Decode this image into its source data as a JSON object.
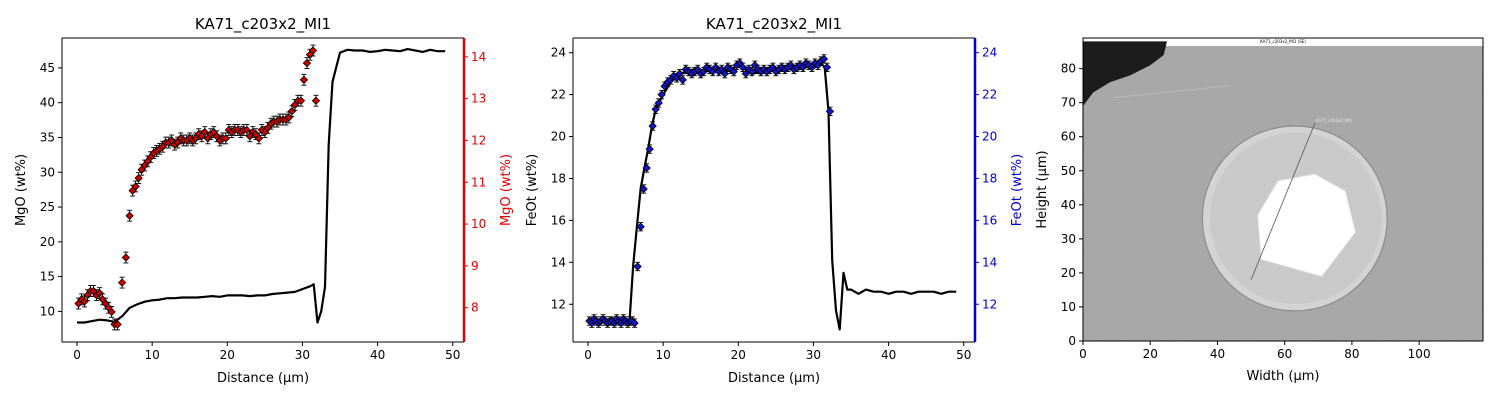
{
  "chart_data": [
    {
      "type": "line",
      "title": "KA71_c203x2_MI1",
      "xlabel": "Distance (µm)",
      "ylabel": "MgO (wt%)",
      "ylabel_right": "MgO (wt%)",
      "xlim": [
        -2,
        51.5
      ],
      "ylim": [
        5.6,
        49.3
      ],
      "ylim_right": [
        7.18,
        14.45
      ],
      "xticks": [
        0,
        10,
        20,
        30,
        40,
        50
      ],
      "yticks": [
        10,
        15,
        20,
        25,
        30,
        35,
        40,
        45
      ],
      "yticks_right": [
        8,
        9,
        10,
        11,
        12,
        13,
        14
      ],
      "grid": false,
      "colors": {
        "line": "#000000",
        "points": "#cc0000",
        "right_axis": "#e00000"
      },
      "series": [
        {
          "axis": "left",
          "style": "line",
          "x": [
            0,
            1,
            2,
            3,
            4,
            5,
            6,
            7,
            8,
            9,
            10,
            11,
            12,
            13,
            14,
            15,
            16,
            17,
            18,
            19,
            20,
            21,
            22,
            23,
            24,
            25,
            26,
            27,
            28,
            29,
            30,
            31,
            31.5,
            32,
            32.5,
            33,
            33.5,
            34,
            35,
            36,
            37,
            38,
            39,
            40,
            41,
            42,
            43,
            44,
            45,
            46,
            47,
            48,
            49
          ],
          "y": [
            8.4,
            8.4,
            8.6,
            8.8,
            8.7,
            8.5,
            9.3,
            10.5,
            11.0,
            11.4,
            11.6,
            11.7,
            11.9,
            11.9,
            12.0,
            12.0,
            12.0,
            12.1,
            12.2,
            12.1,
            12.3,
            12.3,
            12.3,
            12.2,
            12.3,
            12.3,
            12.5,
            12.6,
            12.7,
            12.8,
            13.2,
            13.6,
            13.9,
            8.4,
            10.0,
            13.5,
            34,
            43,
            47.2,
            47.6,
            47.5,
            47.5,
            47.3,
            47.4,
            47.6,
            47.5,
            47.4,
            47.7,
            47.5,
            47.3,
            47.6,
            47.4,
            47.4
          ]
        },
        {
          "axis": "right",
          "style": "errorbar",
          "x": [
            0.2,
            0.6,
            1.0,
            1.4,
            1.8,
            2.2,
            2.6,
            3.0,
            3.4,
            3.8,
            4.2,
            4.6,
            5.0,
            5.4,
            6.0,
            6.5,
            7.0,
            7.4,
            7.8,
            8.2,
            8.6,
            9.0,
            9.4,
            9.8,
            10.2,
            10.6,
            11.0,
            11.4,
            11.8,
            12.2,
            12.6,
            13.0,
            13.4,
            13.8,
            14.2,
            14.6,
            15.0,
            15.4,
            15.8,
            16.2,
            16.6,
            17.0,
            17.4,
            17.8,
            18.2,
            18.6,
            19.0,
            19.4,
            19.8,
            20.2,
            20.6,
            21.0,
            21.4,
            21.8,
            22.2,
            22.6,
            23.0,
            23.4,
            23.8,
            24.2,
            24.6,
            25.0,
            25.4,
            25.8,
            26.2,
            26.6,
            27.0,
            27.4,
            27.8,
            28.2,
            28.6,
            29.0,
            29.4,
            29.8,
            30.2,
            30.6,
            31.0,
            31.4,
            31.8
          ],
          "y": [
            8.1,
            8.2,
            8.15,
            8.3,
            8.4,
            8.4,
            8.3,
            8.35,
            8.2,
            8.1,
            8.0,
            7.9,
            7.6,
            7.6,
            8.6,
            9.2,
            10.2,
            10.8,
            10.9,
            11.1,
            11.3,
            11.4,
            11.5,
            11.6,
            11.7,
            11.75,
            11.8,
            11.85,
            11.95,
            11.95,
            12.0,
            11.9,
            11.95,
            12.05,
            12.0,
            12.0,
            12.05,
            12.0,
            12.05,
            12.15,
            12.1,
            12.2,
            12.05,
            12.15,
            12.2,
            12.1,
            12.0,
            12.05,
            12.05,
            12.25,
            12.2,
            12.25,
            12.25,
            12.2,
            12.25,
            12.25,
            12.1,
            12.2,
            12.15,
            12.05,
            12.25,
            12.2,
            12.3,
            12.4,
            12.45,
            12.45,
            12.5,
            12.5,
            12.5,
            12.55,
            12.7,
            12.85,
            12.95,
            12.95,
            13.45,
            13.85,
            14.05,
            14.15,
            12.95
          ],
          "err": [
            0.13,
            0.13,
            0.13,
            0.13,
            0.13,
            0.13,
            0.13,
            0.13,
            0.13,
            0.13,
            0.13,
            0.13,
            0.13,
            0.13,
            0.13,
            0.13,
            0.13,
            0.13,
            0.13,
            0.13,
            0.13,
            0.13,
            0.13,
            0.13,
            0.13,
            0.13,
            0.13,
            0.13,
            0.13,
            0.13,
            0.13,
            0.13,
            0.13,
            0.13,
            0.13,
            0.13,
            0.13,
            0.13,
            0.13,
            0.13,
            0.13,
            0.13,
            0.13,
            0.13,
            0.13,
            0.13,
            0.13,
            0.13,
            0.13,
            0.13,
            0.13,
            0.13,
            0.13,
            0.13,
            0.13,
            0.13,
            0.13,
            0.13,
            0.13,
            0.13,
            0.13,
            0.13,
            0.13,
            0.13,
            0.13,
            0.13,
            0.13,
            0.13,
            0.13,
            0.13,
            0.13,
            0.13,
            0.13,
            0.13,
            0.13,
            0.13,
            0.13,
            0.13,
            0.13
          ]
        }
      ]
    },
    {
      "type": "line",
      "title": "KA71_c203x2_MI1",
      "xlabel": "Distance (µm)",
      "ylabel": "FeOt (wt%)",
      "ylabel_right": "FeOt (wt%)",
      "xlim": [
        -2,
        51.5
      ],
      "ylim": [
        10.2,
        24.7
      ],
      "ylim_right": [
        10.2,
        24.7
      ],
      "xticks": [
        0,
        10,
        20,
        30,
        40,
        50
      ],
      "yticks": [
        12,
        14,
        16,
        18,
        20,
        22,
        24
      ],
      "yticks_right": [
        12,
        14,
        16,
        18,
        20,
        22,
        24
      ],
      "grid": false,
      "colors": {
        "line": "#000000",
        "points": "#1515c8",
        "right_axis": "#0000cc"
      },
      "series": [
        {
          "axis": "left",
          "style": "line",
          "x": [
            0,
            1,
            2,
            3,
            4,
            5,
            5.5,
            6,
            6.5,
            7,
            7.5,
            8,
            8.5,
            9,
            10,
            11,
            12,
            13,
            14,
            15,
            16,
            17,
            18,
            19,
            20,
            21,
            22,
            23,
            24,
            25,
            26,
            27,
            28,
            29,
            30,
            31,
            31.5,
            32,
            32.5,
            33,
            33.5,
            34,
            34.5,
            35,
            36,
            37,
            38,
            39,
            40,
            41,
            42,
            43,
            44,
            45,
            46,
            47,
            48,
            49
          ],
          "y": [
            11.3,
            11.3,
            11.2,
            11.2,
            11.3,
            11.2,
            11.1,
            13.8,
            15.7,
            17.5,
            18.5,
            19.4,
            20.5,
            21.3,
            22.0,
            22.6,
            22.9,
            23.1,
            23.2,
            23.1,
            23.2,
            23.3,
            23.1,
            23.2,
            23.4,
            23.3,
            23.0,
            23.1,
            23.1,
            23.2,
            23.3,
            23.2,
            23.2,
            23.3,
            23.4,
            23.5,
            23.3,
            21.2,
            14.1,
            11.7,
            10.8,
            13.5,
            12.7,
            12.7,
            12.5,
            12.7,
            12.6,
            12.6,
            12.5,
            12.6,
            12.6,
            12.5,
            12.6,
            12.6,
            12.6,
            12.5,
            12.6,
            12.6
          ]
        },
        {
          "axis": "right",
          "style": "errorbar",
          "x": [
            0.2,
            0.5,
            0.8,
            1.1,
            1.4,
            1.7,
            2.0,
            2.3,
            2.6,
            2.9,
            3.2,
            3.5,
            3.8,
            4.1,
            4.4,
            4.7,
            5.0,
            5.3,
            5.6,
            5.9,
            6.2,
            6.6,
            7.0,
            7.4,
            7.8,
            8.2,
            8.6,
            9.0,
            9.4,
            9.8,
            10.2,
            10.6,
            11.0,
            11.4,
            11.8,
            12.2,
            12.6,
            13.0,
            13.4,
            13.8,
            14.2,
            14.6,
            15.0,
            15.4,
            15.8,
            16.2,
            16.6,
            17.0,
            17.4,
            17.8,
            18.2,
            18.6,
            19.0,
            19.4,
            19.8,
            20.2,
            20.6,
            21.0,
            21.4,
            21.8,
            22.2,
            22.6,
            23.0,
            23.4,
            23.8,
            24.2,
            24.6,
            25.0,
            25.4,
            25.8,
            26.2,
            26.6,
            27.0,
            27.4,
            27.8,
            28.2,
            28.6,
            29.0,
            29.4,
            29.8,
            30.2,
            30.6,
            31.0,
            31.4,
            31.8,
            32.2
          ],
          "y": [
            11.2,
            11.1,
            11.3,
            11.2,
            11.1,
            11.2,
            11.3,
            11.2,
            11.1,
            11.2,
            11.2,
            11.1,
            11.3,
            11.2,
            11.1,
            11.3,
            11.2,
            11.1,
            11.2,
            11.2,
            11.1,
            13.8,
            15.7,
            17.5,
            18.5,
            19.4,
            20.5,
            21.3,
            21.6,
            22.0,
            22.4,
            22.6,
            22.7,
            22.9,
            22.8,
            23.0,
            22.7,
            23.2,
            23.1,
            23.0,
            23.1,
            23.2,
            23.0,
            23.1,
            23.3,
            23.2,
            23.1,
            23.3,
            23.1,
            23.2,
            23.0,
            23.3,
            23.2,
            23.1,
            23.4,
            23.5,
            23.3,
            23.0,
            23.2,
            23.1,
            23.4,
            23.2,
            23.1,
            23.2,
            23.1,
            23.2,
            23.3,
            23.1,
            23.2,
            23.3,
            23.2,
            23.3,
            23.4,
            23.2,
            23.3,
            23.4,
            23.3,
            23.5,
            23.4,
            23.3,
            23.5,
            23.4,
            23.6,
            23.7,
            23.3,
            21.2
          ],
          "err": [
            0.2,
            0.2,
            0.2,
            0.2,
            0.2,
            0.2,
            0.2,
            0.2,
            0.2,
            0.2,
            0.2,
            0.2,
            0.2,
            0.2,
            0.2,
            0.2,
            0.2,
            0.2,
            0.2,
            0.2,
            0.2,
            0.2,
            0.2,
            0.2,
            0.2,
            0.2,
            0.2,
            0.2,
            0.2,
            0.2,
            0.2,
            0.2,
            0.2,
            0.2,
            0.2,
            0.2,
            0.2,
            0.2,
            0.2,
            0.2,
            0.2,
            0.2,
            0.2,
            0.2,
            0.2,
            0.2,
            0.2,
            0.2,
            0.2,
            0.2,
            0.2,
            0.2,
            0.2,
            0.2,
            0.2,
            0.2,
            0.2,
            0.2,
            0.2,
            0.2,
            0.2,
            0.2,
            0.2,
            0.2,
            0.2,
            0.2,
            0.2,
            0.2,
            0.2,
            0.2,
            0.2,
            0.2,
            0.2,
            0.2,
            0.2,
            0.2,
            0.2,
            0.2,
            0.2,
            0.2,
            0.2,
            0.2,
            0.2,
            0.2,
            0.2,
            0.2
          ]
        }
      ]
    },
    {
      "type": "image",
      "title": "",
      "xlabel": "Width (µm)",
      "ylabel": "Height (µm)",
      "xlim": [
        0,
        119
      ],
      "ylim": [
        0,
        89
      ],
      "xticks": [
        0,
        20,
        40,
        60,
        80,
        100
      ],
      "yticks": [
        0,
        10,
        20,
        30,
        40,
        50,
        60,
        70,
        80
      ],
      "inset_title": "KA71_c203x2_MI1 (SE)",
      "traverse_label": "KA71_c203x2_MI1",
      "traverse_line": {
        "x": [
          50,
          69
        ],
        "y": [
          18,
          64
        ]
      },
      "inclusion_polygon": {
        "x": [
          52,
          58,
          69,
          78,
          81,
          71,
          53
        ],
        "y": [
          37,
          47,
          49,
          44,
          32,
          19,
          24
        ]
      },
      "colors": {
        "background": "#a7a7a7",
        "rim": "#d3d3d3",
        "inclusion": "#ffffff",
        "resin": "#1c1c1c"
      }
    }
  ]
}
